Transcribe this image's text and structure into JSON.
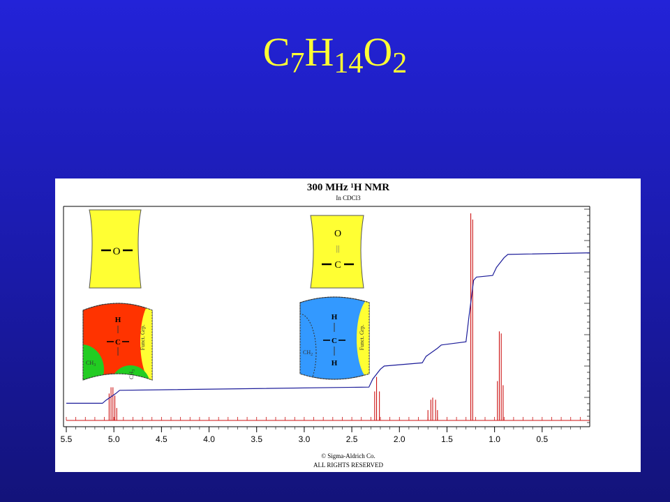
{
  "slide": {
    "title_parts": [
      "C",
      "7",
      "H",
      "14",
      "O",
      "2"
    ],
    "background_color": "#1f1fc0",
    "title_color": "#ffff33"
  },
  "chart_data": {
    "type": "line",
    "title": "300 MHz ¹H NMR",
    "subtitle": "In CDCl3",
    "xlabel": "",
    "ylabel": "",
    "xlim": [
      5.5,
      0.0
    ],
    "x_reversed": true,
    "x_ticks": [
      "5.5",
      "5.0",
      "4.5",
      "4.0",
      "3.5",
      "3.0",
      "2.5",
      "2.0",
      "1.5",
      "1.0",
      "0.5"
    ],
    "grid": false,
    "series": [
      {
        "role": "spectrum",
        "color": "#cc1111",
        "peaks": [
          {
            "shift": 5.05,
            "height": 0.13
          },
          {
            "shift": 5.03,
            "height": 0.16
          },
          {
            "shift": 5.01,
            "height": 0.16
          },
          {
            "shift": 4.99,
            "height": 0.12
          },
          {
            "shift": 4.97,
            "height": 0.06
          },
          {
            "shift": 2.26,
            "height": 0.14
          },
          {
            "shift": 2.24,
            "height": 0.21
          },
          {
            "shift": 2.21,
            "height": 0.14
          },
          {
            "shift": 1.7,
            "height": 0.05
          },
          {
            "shift": 1.67,
            "height": 0.1
          },
          {
            "shift": 1.65,
            "height": 0.11
          },
          {
            "shift": 1.62,
            "height": 0.1
          },
          {
            "shift": 1.6,
            "height": 0.05
          },
          {
            "shift": 1.25,
            "height": 1.0
          },
          {
            "shift": 1.23,
            "height": 0.97
          },
          {
            "shift": 0.97,
            "height": 0.19
          },
          {
            "shift": 0.95,
            "height": 0.43
          },
          {
            "shift": 0.93,
            "height": 0.42
          },
          {
            "shift": 0.91,
            "height": 0.17
          }
        ]
      },
      {
        "role": "integral",
        "color": "#1c1c99",
        "x": [
          5.5,
          5.12,
          5.08,
          4.98,
          4.94,
          2.32,
          2.28,
          2.2,
          2.16,
          1.76,
          1.72,
          1.6,
          1.56,
          1.3,
          1.27,
          1.22,
          1.19,
          1.02,
          0.98,
          0.9,
          0.86,
          0.0
        ],
        "y": [
          0.02,
          0.02,
          0.04,
          0.08,
          0.1,
          0.12,
          0.17,
          0.23,
          0.25,
          0.27,
          0.31,
          0.36,
          0.38,
          0.4,
          0.55,
          0.78,
          0.8,
          0.81,
          0.86,
          0.92,
          0.94,
          0.95
        ]
      }
    ]
  },
  "fragments": {
    "ether_oxygen": {
      "label": "O",
      "color": "#ffff33"
    },
    "carbonyl": {
      "top_label": "O",
      "bond_label": "||",
      "bottom_label": "C",
      "color": "#ffff33"
    },
    "methine": {
      "center_color": "#ff3300",
      "top_label": "H",
      "center_label": "C",
      "side_label": "Funct. Grp.",
      "left_group": "CH",
      "left_sub": "3",
      "bottom_group": "CH",
      "bottom_sub": "3"
    },
    "methylene": {
      "center_color": "#3399ff",
      "top_label": "H",
      "center_label": "C",
      "bottom_label": "H",
      "side_label": "Funct. Grp.",
      "left_group": "CH",
      "left_sub": "2"
    }
  },
  "copyright": {
    "line1": "© Sigma-Aldrich Co.",
    "line2": "ALL RIGHTS RESERVED"
  }
}
